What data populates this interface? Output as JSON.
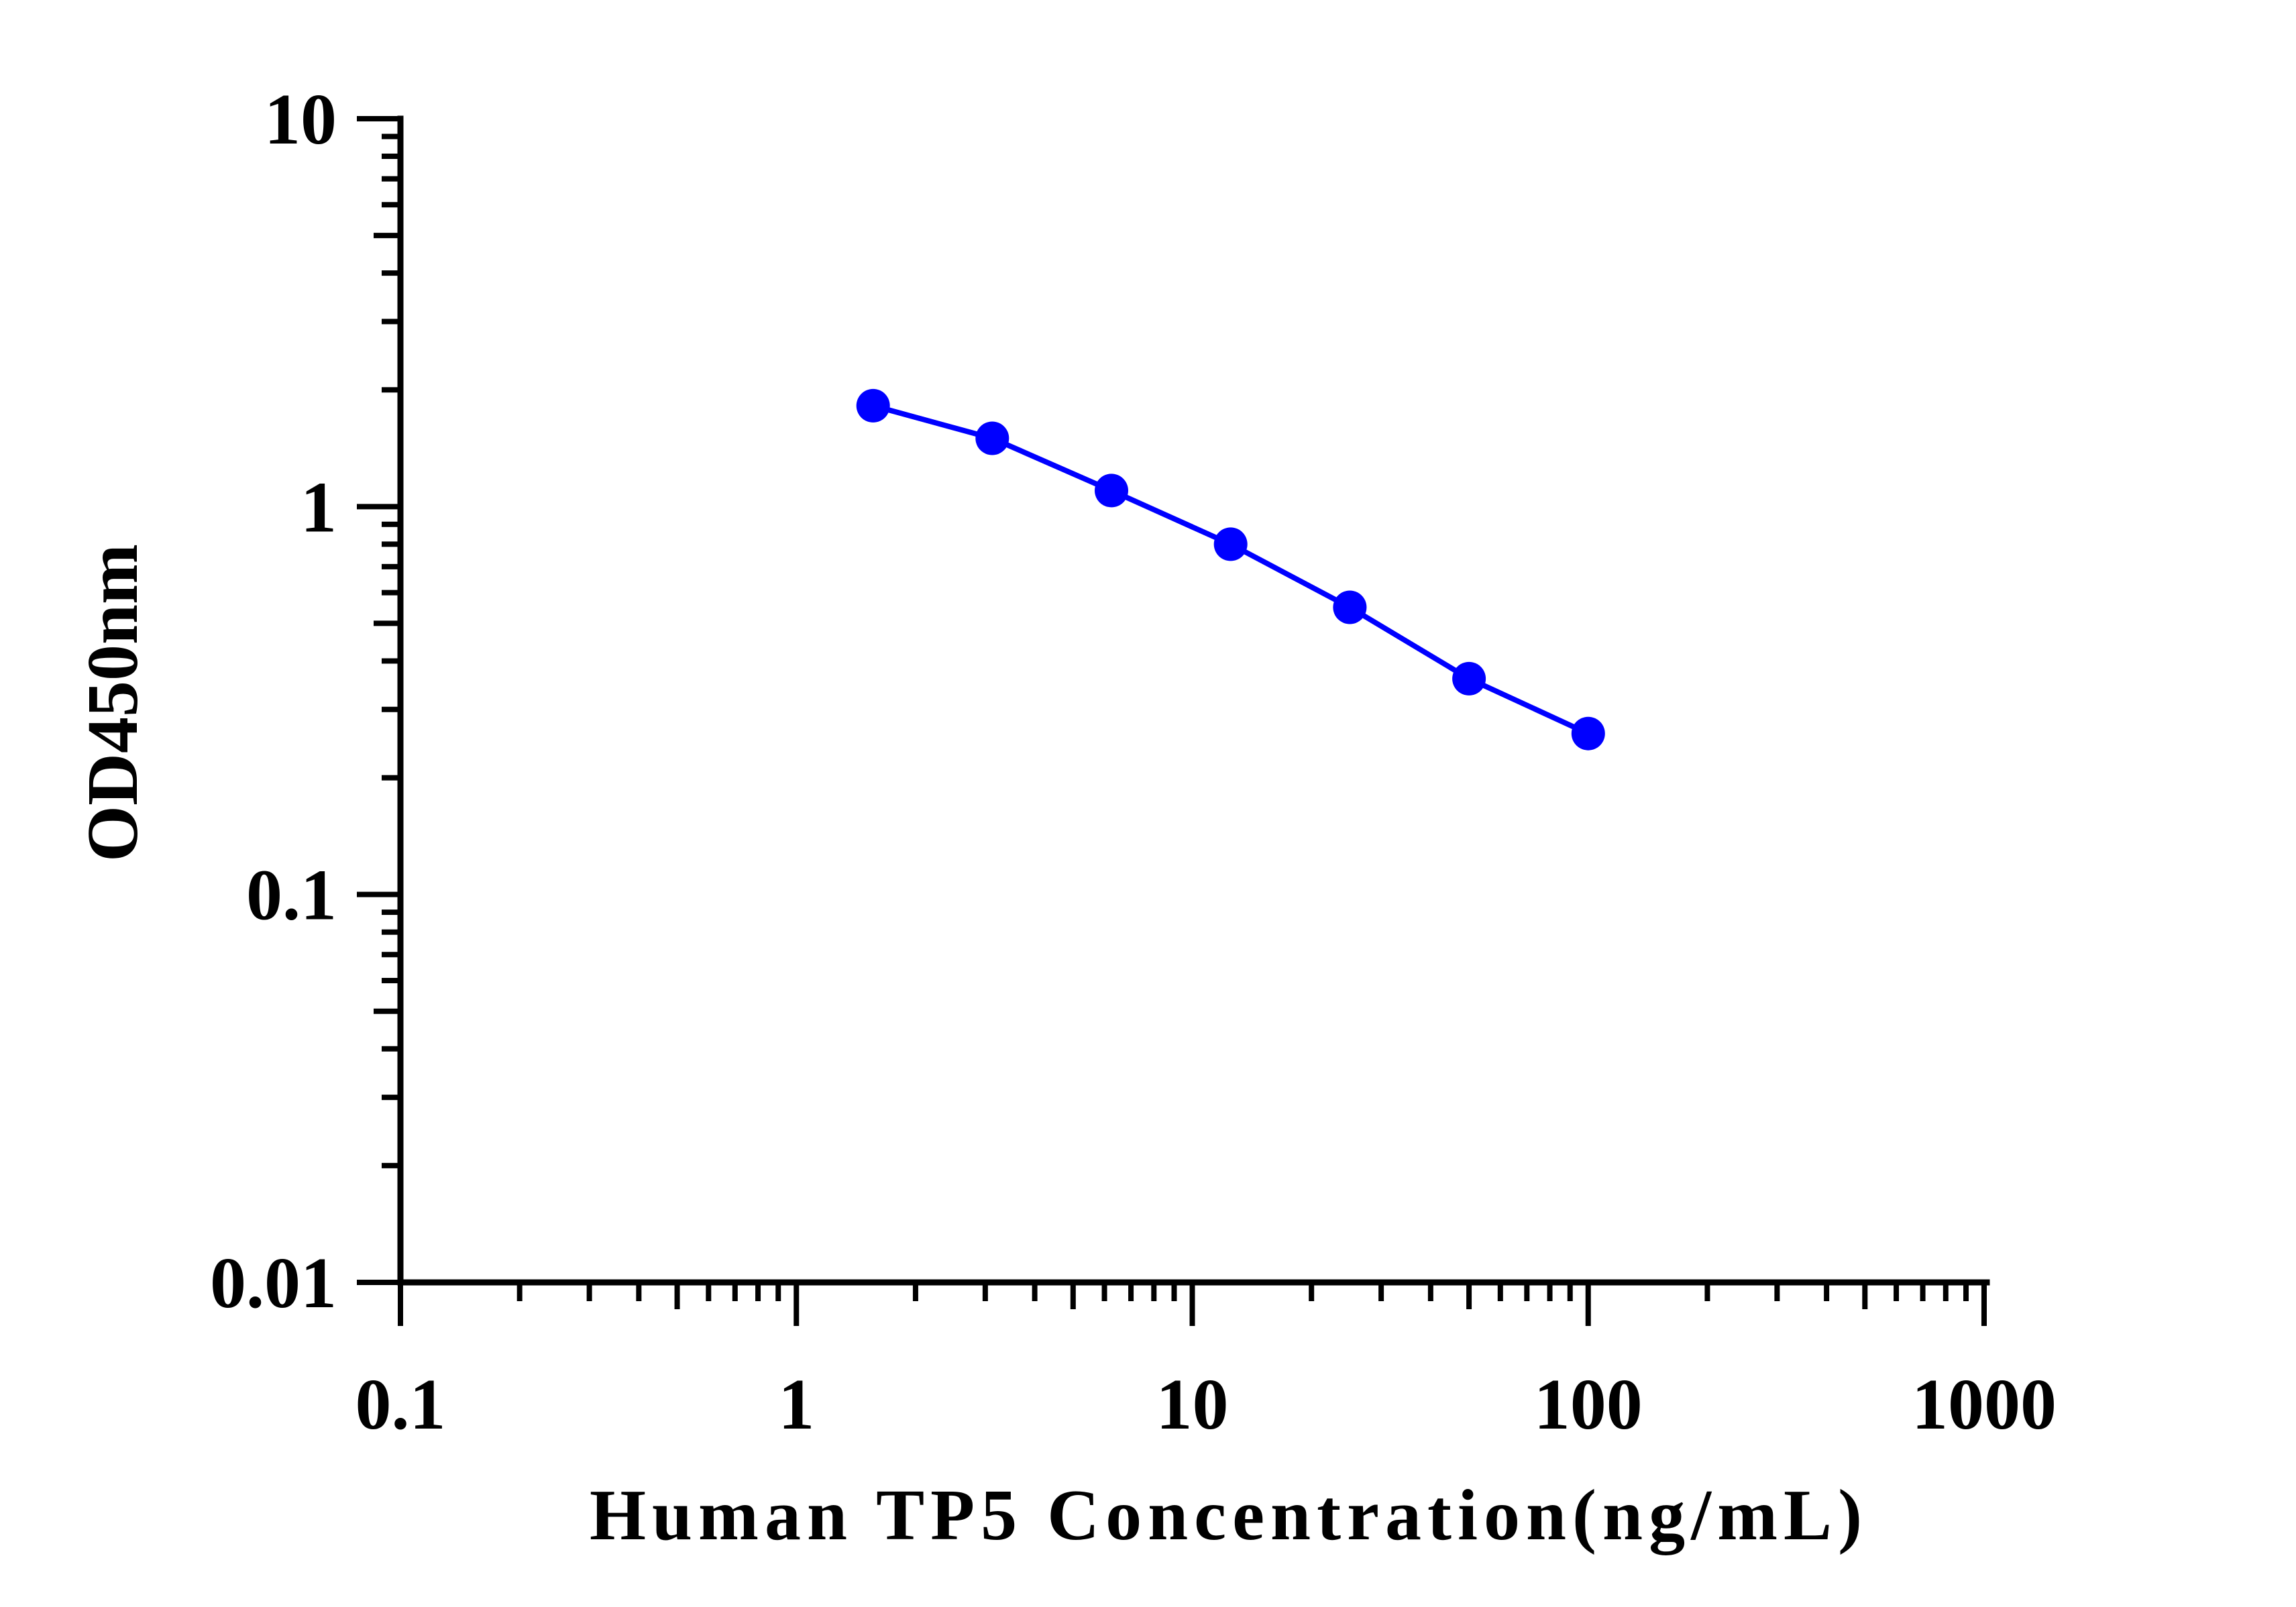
{
  "chart_data": {
    "type": "line",
    "title": "",
    "xlabel": "Human TP5 Concentration(ng/mL)",
    "ylabel": "OD450nm",
    "xscale": "log",
    "yscale": "log",
    "xlim": [
      0.1,
      1000
    ],
    "ylim": [
      0.01,
      10
    ],
    "xticks": [
      "0.1",
      "1",
      "10",
      "100",
      "1000"
    ],
    "yticks": [
      "0.01",
      "0.1",
      "1",
      "10"
    ],
    "grid": false,
    "legend": "none",
    "series": [
      {
        "color": "#0000ff",
        "marker": "circle",
        "x": [
          1.5625,
          3.125,
          6.25,
          12.5,
          25,
          50,
          100
        ],
        "y": [
          1.82,
          1.5,
          1.1,
          0.8,
          0.55,
          0.36,
          0.26
        ]
      }
    ]
  }
}
